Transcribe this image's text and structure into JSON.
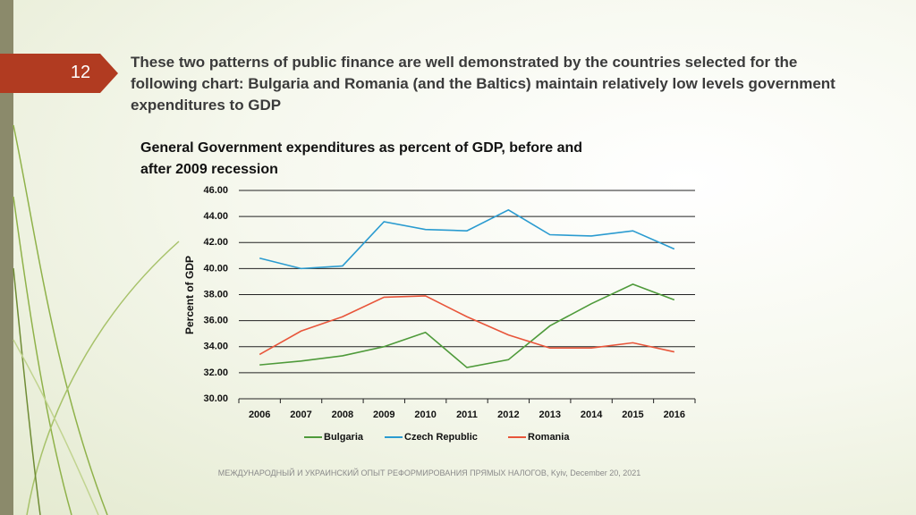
{
  "slide_number": "12",
  "heading": "These two patterns of public finance are well demonstrated by the countries selected for the following chart: Bulgaria and Romania (and the Baltics) maintain relatively low levels government expenditures to GDP",
  "footer": "МЕЖДУНАРОДНЫЙ И УКРАИНСКИЙ ОПЫТ РЕФОРМИРОВАНИЯ ПРЯМЫХ НАЛОГОВ, Kyiv, December 20, 2021",
  "chart_data": {
    "type": "line",
    "title": "General Government expenditures as percent of GDP, before and after 2009 recession",
    "ylabel": "Percent of GDP",
    "categories": [
      "2006",
      "2007",
      "2008",
      "2009",
      "2010",
      "2011",
      "2012",
      "2013",
      "2014",
      "2015",
      "2016"
    ],
    "series": [
      {
        "name": "Bulgaria",
        "color": "#4e9a3a",
        "values": [
          32.6,
          32.9,
          33.3,
          34.0,
          35.1,
          32.4,
          33.0,
          35.6,
          37.3,
          38.8,
          37.6
        ]
      },
      {
        "name": "Czech Republic",
        "color": "#2a9bd0",
        "values": [
          40.8,
          40.0,
          40.2,
          43.6,
          43.0,
          42.9,
          44.5,
          42.6,
          42.5,
          42.9,
          41.5
        ]
      },
      {
        "name": "Romania",
        "color": "#e8553a",
        "values": [
          33.4,
          35.2,
          36.3,
          37.8,
          37.9,
          36.3,
          34.9,
          33.9,
          33.9,
          34.3,
          33.6
        ]
      }
    ],
    "ylim": [
      30,
      46
    ],
    "yticks": [
      {
        "value": 30,
        "label": "30.00"
      },
      {
        "value": 32,
        "label": "32.00"
      },
      {
        "value": 34,
        "label": "34.00"
      },
      {
        "value": 36,
        "label": "36.00"
      },
      {
        "value": 38,
        "label": "38.00"
      },
      {
        "value": 40,
        "label": "40.00"
      },
      {
        "value": 42,
        "label": "42.00"
      },
      {
        "value": 44,
        "label": "44.00"
      },
      {
        "value": 46,
        "label": "46.00"
      }
    ],
    "grid": true,
    "legend": "bottom"
  }
}
